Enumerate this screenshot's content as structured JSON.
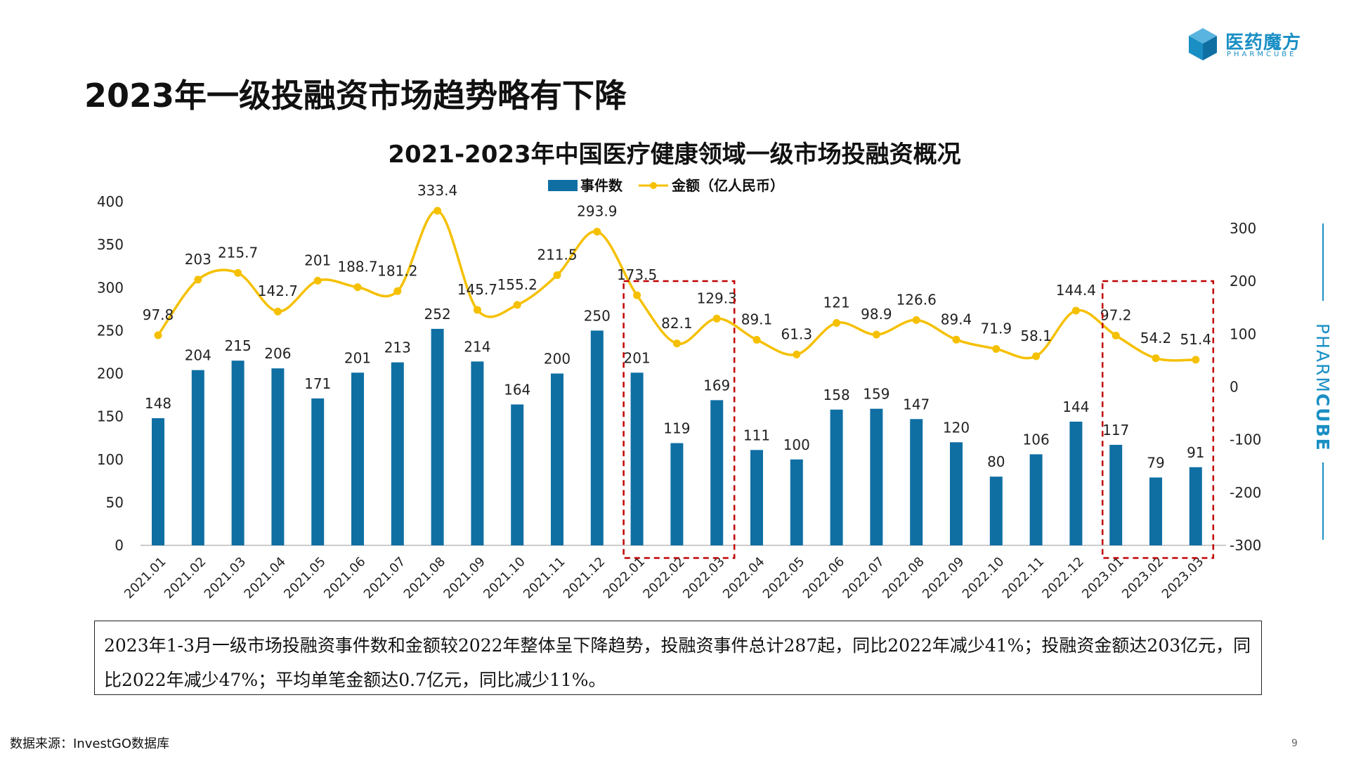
{
  "brand": {
    "name": "医药魔方",
    "sub": "PHARMCUBE",
    "side_light": "PHARM",
    "side_bold": "CUBE",
    "color": "#1a8fc4"
  },
  "page_title": "2023年一级投融资市场趋势略有下降",
  "chart_data": {
    "type": "bar+line",
    "title": "2021-2023年中国医疗健康领域一级市场投融资概况",
    "categories": [
      "2021.01",
      "2021.02",
      "2021.03",
      "2021.04",
      "2021.05",
      "2021.06",
      "2021.07",
      "2021.08",
      "2021.09",
      "2021.10",
      "2021.11",
      "2021.12",
      "2022.01",
      "2022.02",
      "2022.03",
      "2022.04",
      "2022.05",
      "2022.06",
      "2022.07",
      "2022.08",
      "2022.09",
      "2022.10",
      "2022.11",
      "2022.12",
      "2023.01",
      "2023.02",
      "2023.03"
    ],
    "series": [
      {
        "name": "事件数",
        "type": "bar",
        "axis": "left",
        "color": "#0f6fa3",
        "values": [
          148,
          204,
          215,
          206,
          171,
          201,
          213,
          252,
          214,
          164,
          200,
          250,
          201,
          119,
          169,
          111,
          100,
          158,
          159,
          147,
          120,
          80,
          106,
          144,
          117,
          79,
          91
        ]
      },
      {
        "name": "金额（亿人民币）",
        "type": "line",
        "axis": "right",
        "color": "#f5c000",
        "values": [
          97.8,
          203,
          215.7,
          142.7,
          201,
          188.7,
          181.2,
          333.4,
          145.7,
          155.2,
          211.5,
          293.9,
          173.5,
          82.1,
          129.3,
          89.1,
          61.3,
          121,
          98.9,
          126.6,
          89.4,
          71.9,
          58.1,
          144.4,
          97.2,
          54.2,
          51.4
        ]
      }
    ],
    "left_axis": {
      "min": 0,
      "max": 400,
      "ticks": [
        "0",
        "50",
        "100",
        "150",
        "200",
        "250",
        "300",
        "350",
        "400"
      ]
    },
    "right_axis": {
      "min": -300,
      "max": 300,
      "ticks": [
        "-300",
        "-200",
        "-100",
        "0",
        "100",
        "200",
        "300"
      ]
    },
    "highlight_ranges": [
      [
        "2022.01",
        "2022.03"
      ],
      [
        "2023.01",
        "2023.03"
      ]
    ],
    "highlight_color": "#c00000",
    "grid": false,
    "legend_position": "top-center"
  },
  "summary": "2023年1-3月一级市场投融资事件数和金额较2022年整体呈下降趋势，投融资事件总计287起，同比2022年减少41%；投融资金额达203亿元，同比2022年减少47%；平均单笔金额达0.7亿元，同比减少11%。",
  "source": "数据来源：InvestGO数据库",
  "page_number": "9"
}
